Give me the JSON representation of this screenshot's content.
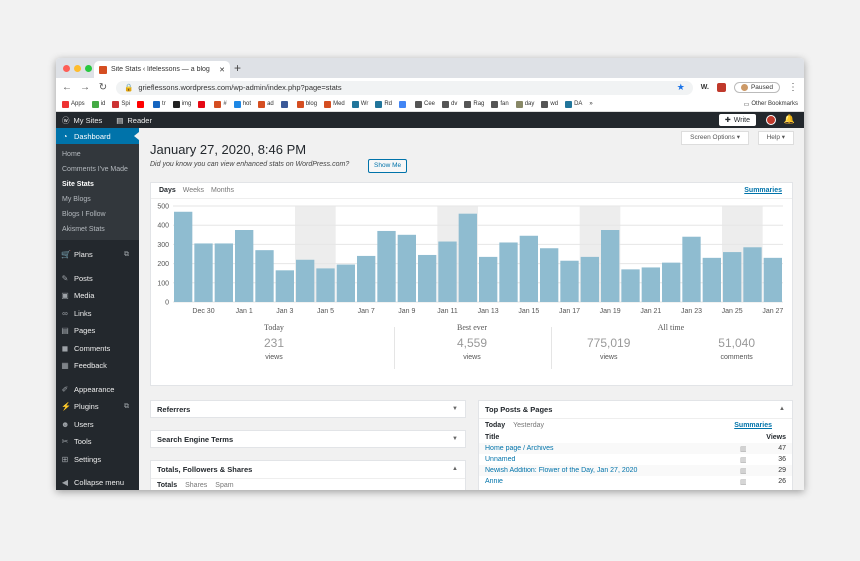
{
  "browser": {
    "tab_title": "Site Stats ‹ lifelessons — a blog",
    "new_tab": "+",
    "url": "grieflessons.wordpress.com/wp-admin/index.php?page=stats",
    "profile_status": "Paused",
    "bookmarks": [
      {
        "label": "Apps",
        "color": "#e33"
      },
      {
        "label": "id",
        "color": "#4a4"
      },
      {
        "label": "Spi",
        "color": "#c33"
      },
      {
        "label": "",
        "color": "#f00"
      },
      {
        "label": "tr",
        "color": "#1565c0"
      },
      {
        "label": "img",
        "color": "#222"
      },
      {
        "label": "",
        "color": "#e50914"
      },
      {
        "label": "#",
        "color": "#d54e21"
      },
      {
        "label": "hot",
        "color": "#1e88e5"
      },
      {
        "label": "ad",
        "color": "#d54e21"
      },
      {
        "label": "",
        "color": "#3b5998"
      },
      {
        "label": "blog",
        "color": "#d54e21"
      },
      {
        "label": "Med",
        "color": "#d54e21"
      },
      {
        "label": "Wr",
        "color": "#21759b"
      },
      {
        "label": "Rd",
        "color": "#21759b"
      },
      {
        "label": "",
        "color": "#4285f4"
      },
      {
        "label": "Cee",
        "color": "#555"
      },
      {
        "label": "dv",
        "color": "#555"
      },
      {
        "label": "Rag",
        "color": "#555"
      },
      {
        "label": "fan",
        "color": "#555"
      },
      {
        "label": "day",
        "color": "#886"
      },
      {
        "label": "wd",
        "color": "#555"
      },
      {
        "label": "DA",
        "color": "#21759b"
      }
    ],
    "other_bookmarks": "Other Bookmarks"
  },
  "adminbar": {
    "my_sites": "My Sites",
    "reader": "Reader",
    "write": "Write"
  },
  "sidebar": {
    "dashboard": "Dashboard",
    "sub": [
      "Home",
      "Comments I've Made",
      "Site Stats",
      "My Blogs",
      "Blogs I Follow",
      "Akismet Stats"
    ],
    "items": [
      {
        "label": "Plans",
        "icon": "cart-icon",
        "glyph": "🛒"
      },
      {
        "label": "Posts",
        "icon": "pin-icon",
        "glyph": "✎"
      },
      {
        "label": "Media",
        "icon": "media-icon",
        "glyph": "▣"
      },
      {
        "label": "Links",
        "icon": "link-icon",
        "glyph": "∞"
      },
      {
        "label": "Pages",
        "icon": "page-icon",
        "glyph": "▤"
      },
      {
        "label": "Comments",
        "icon": "comment-icon",
        "glyph": "◼"
      },
      {
        "label": "Feedback",
        "icon": "feedback-icon",
        "glyph": "▦"
      },
      {
        "label": "Appearance",
        "icon": "brush-icon",
        "glyph": "✐"
      },
      {
        "label": "Plugins",
        "icon": "plug-icon",
        "glyph": "⚡"
      },
      {
        "label": "Users",
        "icon": "users-icon",
        "glyph": "☻"
      },
      {
        "label": "Tools",
        "icon": "wrench-icon",
        "glyph": "✂"
      },
      {
        "label": "Settings",
        "icon": "settings-icon",
        "glyph": "⊞"
      },
      {
        "label": "Collapse menu",
        "icon": "collapse-icon",
        "glyph": "◀"
      }
    ]
  },
  "main": {
    "screen_options": "Screen Options ▾",
    "help": "Help ▾",
    "title": "January 27, 2020, 8:46 PM",
    "enhanced_text": "Did you know you can view enhanced stats on WordPress.com?",
    "show_me": "Show Me",
    "period_tabs": [
      "Days",
      "Weeks",
      "Months"
    ],
    "summaries": "Summaries"
  },
  "chart_data": {
    "type": "bar",
    "title": "",
    "xlabel": "",
    "ylabel": "",
    "ylim": [
      0,
      500
    ],
    "yticks": [
      0,
      100,
      200,
      300,
      400,
      500
    ],
    "color": "#8fbcd0",
    "shade_color": "#ededed",
    "categories": [
      "Dec 29",
      "Dec 30",
      "Dec 31",
      "Jan 1",
      "Jan 2",
      "Jan 3",
      "Jan 4",
      "Jan 5",
      "Jan 6",
      "Jan 7",
      "Jan 8",
      "Jan 9",
      "Jan 10",
      "Jan 11",
      "Jan 12",
      "Jan 13",
      "Jan 14",
      "Jan 15",
      "Jan 16",
      "Jan 17",
      "Jan 18",
      "Jan 19",
      "Jan 20",
      "Jan 21",
      "Jan 22",
      "Jan 23",
      "Jan 24",
      "Jan 25",
      "Jan 26",
      "Jan 27"
    ],
    "values": [
      470,
      305,
      305,
      375,
      270,
      165,
      220,
      175,
      195,
      240,
      370,
      350,
      245,
      315,
      460,
      235,
      310,
      345,
      280,
      215,
      235,
      375,
      170,
      180,
      205,
      340,
      230,
      260,
      285,
      230
    ],
    "weekend_ranges": [
      [
        6,
        7
      ],
      [
        13,
        14
      ],
      [
        20,
        21
      ],
      [
        27,
        28
      ]
    ],
    "xtick_labels": [
      "Dec 30",
      "Jan 1",
      "Jan 3",
      "Jan 5",
      "Jan 7",
      "Jan 9",
      "Jan 11",
      "Jan 13",
      "Jan 15",
      "Jan 17",
      "Jan 19",
      "Jan 21",
      "Jan 23",
      "Jan 25",
      "Jan 27"
    ],
    "xtick_indices": [
      1,
      3,
      5,
      7,
      9,
      11,
      13,
      15,
      17,
      19,
      21,
      23,
      25,
      27,
      29
    ]
  },
  "summary": {
    "today_head": "Today",
    "today_val": "231",
    "today_lbl": "views",
    "best_head": "Best ever",
    "best_val": "4,559",
    "best_lbl": "views",
    "all_head": "All time",
    "all_views": "775,019",
    "all_views_lbl": "views",
    "all_comments": "51,040",
    "all_comments_lbl": "comments"
  },
  "widgets": {
    "referrers": "Referrers",
    "search_terms": "Search Engine Terms",
    "totals": "Totals, Followers & Shares",
    "totals_tabs": [
      "Totals",
      "Shares",
      "Spam"
    ],
    "top_posts": "Top Posts & Pages",
    "top_tabs": [
      "Today",
      "Yesterday"
    ],
    "top_summaries": "Summaries",
    "col_title": "Title",
    "col_views": "Views",
    "rows": [
      {
        "title": "Home page / Archives",
        "views": "47"
      },
      {
        "title": "Unnamed",
        "views": "36"
      },
      {
        "title": "Newish Addition: Flower of the Day, Jan 27, 2020",
        "views": "29"
      },
      {
        "title": "Annie",
        "views": "26"
      }
    ]
  }
}
